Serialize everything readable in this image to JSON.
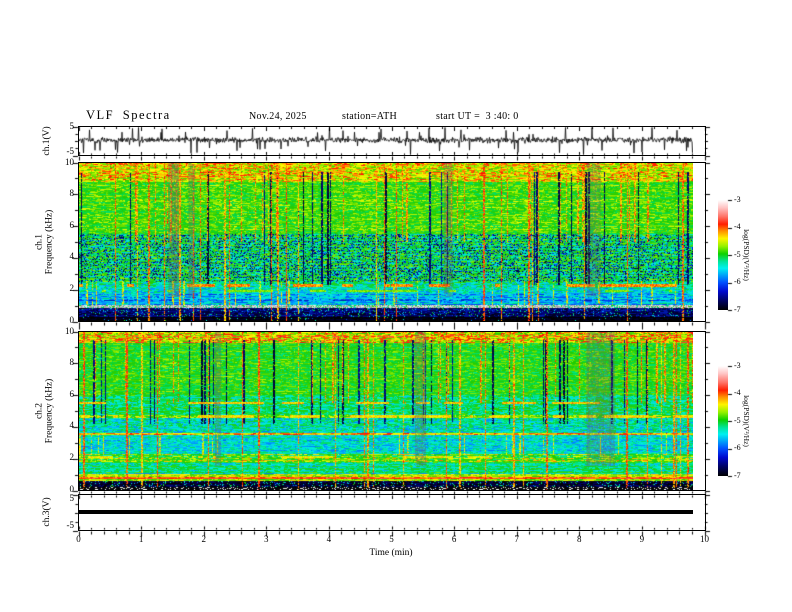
{
  "header": {
    "title": "VLF Spectra",
    "date": "Nov.24, 2025",
    "station": "station=ATH",
    "start_ut": "start UT =  3 :40: 0"
  },
  "panels": {
    "ch1_wave": {
      "label": "ch.1(V)",
      "y_top_label": "5",
      "y_bottom_label": "-5"
    },
    "spec1": {
      "label_line1": "ch.1",
      "label_line2": "Frequency (kHz)",
      "y_tick_labels": [
        "10",
        "8",
        "6",
        "4",
        "2",
        "0"
      ]
    },
    "spec2": {
      "label_line1": "ch.2",
      "label_line2": "Frequency (kHz)",
      "y_tick_labels": [
        "10",
        "8",
        "6",
        "4",
        "2",
        "0"
      ]
    },
    "ch3_wave": {
      "label": "ch.3(V)",
      "y_top_label": "5",
      "y_bottom_label": "-5"
    }
  },
  "x_axis": {
    "label": "Time (min)",
    "tick_labels": [
      "0",
      "1",
      "2",
      "3",
      "4",
      "5",
      "6",
      "7",
      "8",
      "9",
      "10"
    ],
    "minor_divisions": 5
  },
  "colorbar": {
    "unit_label": "log(PSD)(V²/Hz)",
    "tick_labels": [
      "-3",
      "-4",
      "-5",
      "-6",
      "-7"
    ],
    "gradient_stops": [
      [
        "0%",
        "#ffffff"
      ],
      [
        "7%",
        "#ffc4c4"
      ],
      [
        "15%",
        "#ff7468"
      ],
      [
        "22%",
        "#ff1e00"
      ],
      [
        "28%",
        "#ff8c00"
      ],
      [
        "35%",
        "#fef400"
      ],
      [
        "42%",
        "#96f100"
      ],
      [
        "49%",
        "#0cd100"
      ],
      [
        "56%",
        "#00e49c"
      ],
      [
        "62%",
        "#00f0f0"
      ],
      [
        "68%",
        "#00a6f8"
      ],
      [
        "75%",
        "#0050ff"
      ],
      [
        "83%",
        "#0009cf"
      ],
      [
        "91%",
        "#000368"
      ],
      [
        "100%",
        "#000000"
      ]
    ]
  },
  "chart_data": {
    "type": "heatmap",
    "title": "VLF Spectra",
    "x_range_min": [
      0,
      10
    ],
    "data_end_min": 9.8,
    "xlabel": "Time (min)",
    "z_label": "log(PSD)(V²/Hz)",
    "z_range": [
      -7,
      -3
    ],
    "colormap_anchors": [
      [
        -7,
        "#000000"
      ],
      [
        -6.55,
        "#00006e"
      ],
      [
        -6.1,
        "#0033ee"
      ],
      [
        -5.75,
        "#00aaff"
      ],
      [
        -5.5,
        "#00eedd"
      ],
      [
        -5.15,
        "#00dd55"
      ],
      [
        -4.85,
        "#22cc00"
      ],
      [
        -4.55,
        "#99ee00"
      ],
      [
        -4.35,
        "#ffff00"
      ],
      [
        -4.15,
        "#ff9900"
      ],
      [
        -3.95,
        "#ff1100"
      ],
      [
        -3.6,
        "#ff8888"
      ],
      [
        -3.25,
        "#ffcccc"
      ],
      [
        -3,
        "#ffffff"
      ]
    ],
    "panels": [
      {
        "channel": "ch.1(V)",
        "type": "waveform",
        "y_range": [
          -5,
          5
        ],
        "baseline": 0.35,
        "noise_sigma": 0.5,
        "spike_rate": 0.06,
        "spike_amp_range": [
          1.5,
          5
        ]
      },
      {
        "channel": "ch.1",
        "type": "spectrogram",
        "ylabel": "Frequency (kHz)",
        "y_range_khz": [
          0,
          10
        ],
        "bands": [
          {
            "f": [
              0,
              0.25
            ],
            "base": -6.95,
            "noise": 0.15,
            "speck": 0.025
          },
          {
            "f": [
              0.25,
              0.85
            ],
            "base": -6.6,
            "noise": 0.3,
            "speck": 0.1
          },
          {
            "f": [
              0.85,
              1.0
            ],
            "base": -5.2,
            "noise": 0.3,
            "gray": 0.75
          },
          {
            "f": [
              1.0,
              1.75
            ],
            "base": -5.75,
            "noise": 0.35,
            "rowband": 0.25
          },
          {
            "f": [
              1.75,
              2.3
            ],
            "base": -5.45,
            "noise": 0.4
          },
          {
            "f": [
              2.3,
              2.5
            ],
            "base": -5.3,
            "noise": 0.5
          },
          {
            "f": [
              2.5,
              5.5
            ],
            "base": -5.1,
            "noise": 0.5,
            "dapple": 0.26,
            "dapple_v": -6.35
          },
          {
            "f": [
              5.5,
              8.8
            ],
            "base": -4.8,
            "noise": 0.35
          },
          {
            "f": [
              8.8,
              10
            ],
            "base": -4.4,
            "noise": 0.42
          }
        ],
        "hlines": [
          {
            "f": 2.25,
            "hw": 0.08,
            "v": -4.15,
            "coverage": 0.35
          },
          {
            "f": 1.9,
            "hw": 0.07,
            "v": -4.6,
            "coverage": 0.25
          }
        ],
        "vstreaks": {
          "red_p": 0.03,
          "red_top_p": 0.05,
          "red_top_f0": 5.0,
          "red_mid_p": 0.04,
          "red_mid_f": [
            1.0,
            2.5
          ],
          "dark_p": 0.05,
          "dark_f": [
            2.3,
            9.4
          ],
          "gray_bands": 4,
          "gray_f0": 1.5
        }
      },
      {
        "channel": "ch.2",
        "type": "spectrogram",
        "ylabel": "Frequency (kHz)",
        "y_range_khz": [
          0,
          10
        ],
        "bands": [
          {
            "f": [
              0,
              0.2
            ],
            "base": -6.9,
            "noise": 0.2,
            "dashrow": true
          },
          {
            "f": [
              0.2,
              0.55
            ],
            "base": -6.8,
            "noise": 0.25,
            "speck": 0.12
          },
          {
            "f": [
              0.55,
              0.7
            ],
            "base": -4.55,
            "noise": 0.3
          },
          {
            "f": [
              0.7,
              0.85
            ],
            "base": -4.0,
            "noise": 0.22
          },
          {
            "f": [
              0.85,
              1.0
            ],
            "base": -4.45,
            "noise": 0.3
          },
          {
            "f": [
              1.0,
              1.75
            ],
            "base": -5.3,
            "noise": 0.4,
            "rowband": 0.3
          },
          {
            "f": [
              1.75,
              2.25
            ],
            "base": -4.8,
            "noise": 0.5,
            "rowband": 0.3
          },
          {
            "f": [
              2.25,
              3.45
            ],
            "base": -5.5,
            "noise": 0.35
          },
          {
            "f": [
              3.45,
              3.6
            ],
            "base": -4.15,
            "noise": 0.3
          },
          {
            "f": [
              3.6,
              4.55
            ],
            "base": -5.35,
            "noise": 0.45
          },
          {
            "f": [
              4.55,
              4.75
            ],
            "base": -4.6,
            "noise": 0.45
          },
          {
            "f": [
              4.75,
              6.0
            ],
            "base": -5.15,
            "noise": 0.45
          },
          {
            "f": [
              6.0,
              9.3
            ],
            "base": -4.9,
            "noise": 0.35
          },
          {
            "f": [
              9.3,
              10
            ],
            "base": -4.35,
            "noise": 0.5
          }
        ],
        "hlines": [
          {
            "f": 5.5,
            "hw": 0.08,
            "v": -4.25,
            "coverage": 0.4
          },
          {
            "f": 4.65,
            "hw": 0.07,
            "v": -4.3,
            "coverage": 0.5
          },
          {
            "f": 2.1,
            "hw": 0.06,
            "v": -4.35,
            "coverage": 0.3
          }
        ],
        "vstreaks": {
          "red_p": 0.035,
          "red_top_p": 0.045,
          "red_top_f0": 5.5,
          "red_mid_p": 0.05,
          "red_mid_f": [
            2.2,
            3.5
          ],
          "dark_p": 0.06,
          "dark_f": [
            4.2,
            9.5
          ],
          "gray_bands": 5,
          "gray_f0": 1.5
        }
      },
      {
        "channel": "ch.3(V)",
        "type": "waveform",
        "y_range": [
          -5,
          5
        ],
        "baseline": 0,
        "flat": true,
        "thickness_v": 0.7
      }
    ]
  }
}
